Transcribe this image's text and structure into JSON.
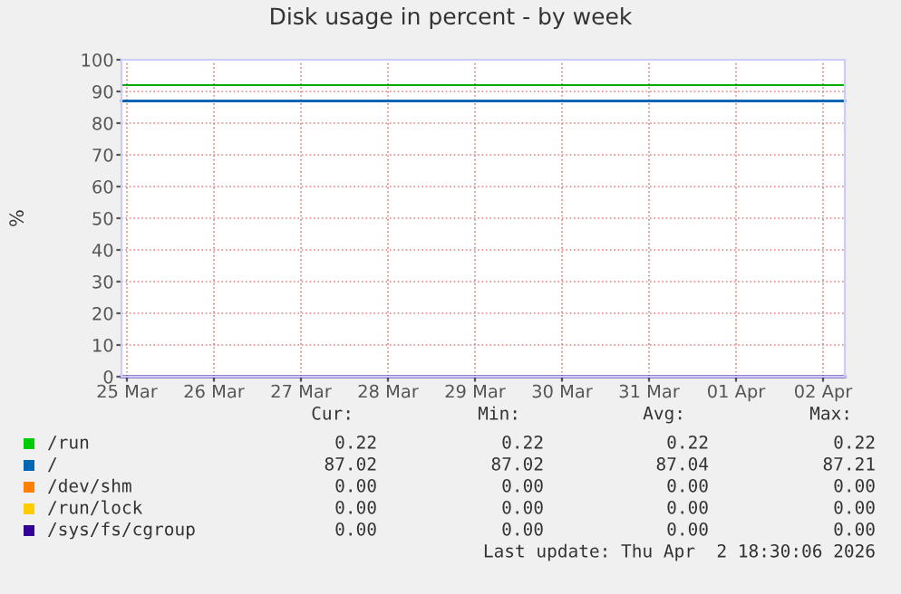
{
  "chart_data": {
    "type": "line",
    "title": "Disk usage in percent - by week",
    "ylabel": "%",
    "xlim": [
      "2026-03-25T10:30",
      "2026-04-02T18:00"
    ],
    "ylim": [
      0,
      100
    ],
    "yticks": [
      0,
      10,
      20,
      30,
      40,
      50,
      60,
      70,
      80,
      90,
      100
    ],
    "xticks": [
      {
        "value": "2026-03-25T12:00",
        "label": "25 Mar"
      },
      {
        "value": "2026-03-26T12:00",
        "label": "26 Mar"
      },
      {
        "value": "2026-03-27T12:00",
        "label": "27 Mar"
      },
      {
        "value": "2026-03-28T12:00",
        "label": "28 Mar"
      },
      {
        "value": "2026-03-29T12:00",
        "label": "29 Mar"
      },
      {
        "value": "2026-03-30T12:00",
        "label": "30 Mar"
      },
      {
        "value": "2026-03-31T12:00",
        "label": "31 Mar"
      },
      {
        "value": "2026-04-01T12:00",
        "label": "01 Apr"
      },
      {
        "value": "2026-04-02T12:00",
        "label": "02 Apr"
      }
    ],
    "grid": true,
    "legend": "bottom left",
    "marker": "none",
    "line_style": "solid",
    "series": [
      {
        "name": "/run",
        "color": "#00cc00",
        "values": [
          null,
          null
        ]
      },
      {
        "name": "/",
        "color": "#0066b3",
        "x": [
          "2026-03-25T10:30",
          "2026-04-02T18:00"
        ],
        "values": [
          87,
          87
        ]
      },
      {
        "name": "/dev/shm",
        "color": "#ff8000",
        "values": [
          null,
          null
        ]
      },
      {
        "name": "/run/lock",
        "color": "#ffcc00",
        "values": [
          null,
          null
        ]
      },
      {
        "name": "/sys/fs/cgroup",
        "color": "#330099",
        "x": [
          "2026-03-25T10:30",
          "2026-04-02T18:00"
        ],
        "values": [
          0,
          0
        ]
      }
    ],
    "ref_lines": [
      {
        "axis": "y",
        "value": 92,
        "label": null,
        "color": "#00aa00"
      }
    ],
    "annotations": [
      "Cur:",
      "Min:",
      "Avg:",
      "Max:",
      "0.22",
      "0.22",
      "0.22",
      "0.22",
      "87.02",
      "87.02",
      "87.04",
      "87.21",
      "0.00",
      "0.00",
      "0.00",
      "0.00",
      "0.00",
      "0.00",
      "0.00",
      "0.00",
      "0.00",
      "0.00",
      "0.00",
      "0.00",
      "Last update: Thu Apr  2 18:30:06 2026"
    ]
  }
}
